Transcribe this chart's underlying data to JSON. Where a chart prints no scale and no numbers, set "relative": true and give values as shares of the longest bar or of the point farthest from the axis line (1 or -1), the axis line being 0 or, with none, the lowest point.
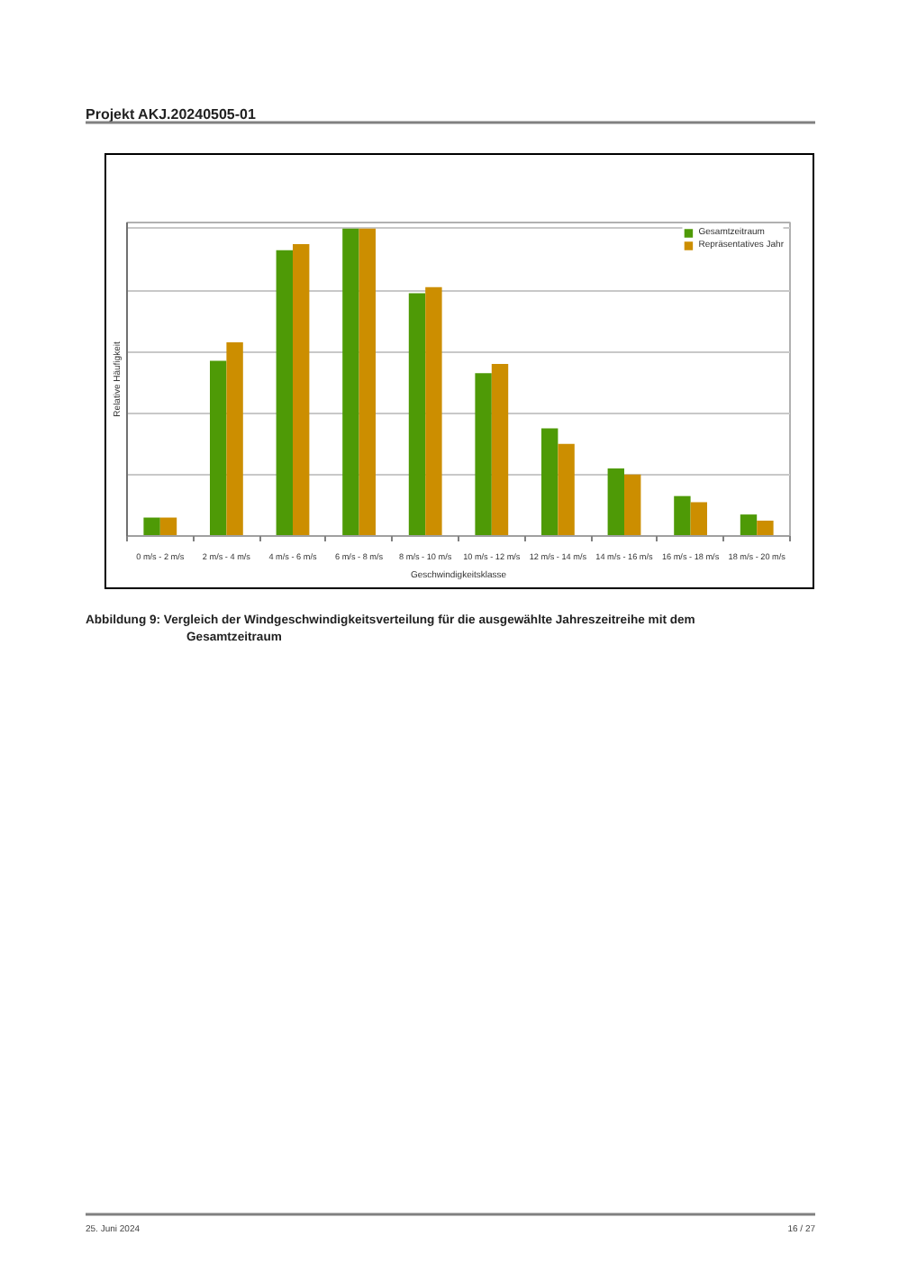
{
  "chart_data": {
    "type": "bar",
    "categories": [
      "0 m/s - 2 m/s",
      "2 m/s - 4 m/s",
      "4 m/s - 6 m/s",
      "6 m/s - 8 m/s",
      "8 m/s - 10 m/s",
      "10 m/s - 12 m/s",
      "12 m/s - 14 m/s",
      "14 m/s - 16 m/s",
      "16 m/s - 18 m/s",
      "18 m/s - 20 m/s"
    ],
    "series": [
      {
        "name": "Gesamtzeitraum",
        "color": "#4e9a06",
        "values": [
          0.06,
          0.57,
          0.93,
          1.0,
          0.79,
          0.53,
          0.35,
          0.22,
          0.13,
          0.07
        ]
      },
      {
        "name": "Repräsentatives Jahr",
        "color": "#cc8e00",
        "values": [
          0.06,
          0.63,
          0.95,
          1.0,
          0.81,
          0.56,
          0.3,
          0.2,
          0.11,
          0.05
        ]
      }
    ],
    "relative": true,
    "xlabel": "Geschwindigkeitsklasse",
    "ylabel": "Relative Häufigkeit",
    "legend": "top right",
    "grid": "y",
    "annotations": [
      "Projekt AKJ.20240505-01",
      "Abbildung 9: Vergleich der Windgeschwindigkeitsverteilung für die ausgewählte Jahreszeitreihe mit dem Gesamtzeitraum",
      "25. Juni 2024",
      "16 / 27"
    ]
  }
}
